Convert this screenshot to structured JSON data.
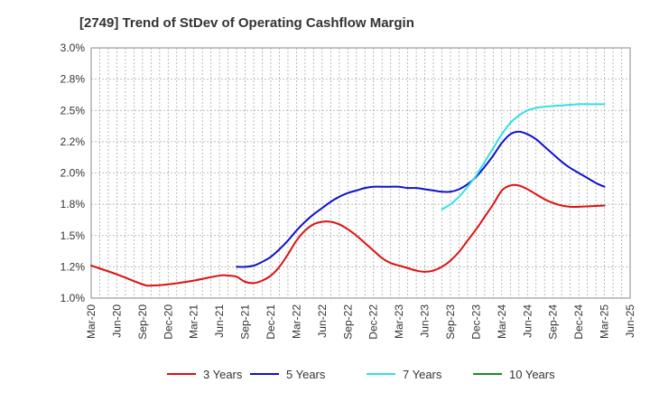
{
  "chart_data": {
    "type": "line",
    "title": "[2749]  Trend of StDev of Operating Cashflow Margin",
    "xlabel": "",
    "ylabel": "",
    "ylim": [
      1.0,
      3.0
    ],
    "y_ticks": [
      "1.0%",
      "1.2%",
      "1.5%",
      "1.8%",
      "2.0%",
      "2.2%",
      "2.5%",
      "2.8%",
      "3.0%"
    ],
    "x_ticks": [
      "Mar-20",
      "Jun-20",
      "Sep-20",
      "Dec-20",
      "Mar-21",
      "Jun-21",
      "Sep-21",
      "Dec-21",
      "Mar-22",
      "Jun-22",
      "Sep-22",
      "Dec-22",
      "Mar-23",
      "Jun-23",
      "Sep-23",
      "Dec-23",
      "Mar-24",
      "Jun-24",
      "Sep-24",
      "Dec-24",
      "Mar-25",
      "Jun-25"
    ],
    "grid": true,
    "legend_position": "bottom",
    "series": [
      {
        "name": "3 Years",
        "color": "#dd1111",
        "x": [
          "2020-03",
          "2020-06",
          "2020-09",
          "2020-10",
          "2020-12",
          "2021-03",
          "2021-06",
          "2021-07",
          "2021-08",
          "2021-09",
          "2021-10",
          "2021-11",
          "2021-12",
          "2022-01",
          "2022-02",
          "2022-03",
          "2022-04",
          "2022-05",
          "2022-06",
          "2022-07",
          "2022-08",
          "2022-09",
          "2022-10",
          "2022-11",
          "2022-12",
          "2023-01",
          "2023-02",
          "2023-03",
          "2023-04",
          "2023-05",
          "2023-06",
          "2023-07",
          "2023-08",
          "2023-09",
          "2023-10",
          "2023-11",
          "2023-12",
          "2024-01",
          "2024-02",
          "2024-03",
          "2024-04",
          "2024-05",
          "2024-06",
          "2024-07",
          "2024-08",
          "2024-09",
          "2024-10",
          "2024-11",
          "2024-12",
          "2025-03"
        ],
        "values": [
          1.26,
          1.19,
          1.11,
          1.1,
          1.11,
          1.14,
          1.18,
          1.18,
          1.17,
          1.13,
          1.12,
          1.14,
          1.18,
          1.25,
          1.35,
          1.46,
          1.54,
          1.59,
          1.61,
          1.61,
          1.59,
          1.55,
          1.5,
          1.44,
          1.38,
          1.32,
          1.28,
          1.26,
          1.24,
          1.22,
          1.21,
          1.22,
          1.25,
          1.3,
          1.37,
          1.46,
          1.55,
          1.65,
          1.75,
          1.86,
          1.9,
          1.9,
          1.87,
          1.83,
          1.79,
          1.76,
          1.74,
          1.73,
          1.73,
          1.74
        ]
      },
      {
        "name": "5 Years",
        "color": "#1111cc",
        "x": [
          "2021-08",
          "2021-09",
          "2021-10",
          "2021-11",
          "2021-12",
          "2022-01",
          "2022-02",
          "2022-03",
          "2022-04",
          "2022-05",
          "2022-06",
          "2022-07",
          "2022-08",
          "2022-09",
          "2022-10",
          "2022-11",
          "2022-12",
          "2023-01",
          "2023-02",
          "2023-03",
          "2023-04",
          "2023-05",
          "2023-06",
          "2023-07",
          "2023-08",
          "2023-09",
          "2023-10",
          "2023-11",
          "2023-12",
          "2024-01",
          "2024-02",
          "2024-03",
          "2024-04",
          "2024-05",
          "2024-06",
          "2024-07",
          "2024-08",
          "2024-09",
          "2024-10",
          "2024-11",
          "2024-12",
          "2025-01",
          "2025-02",
          "2025-03"
        ],
        "values": [
          1.25,
          1.25,
          1.26,
          1.29,
          1.33,
          1.39,
          1.46,
          1.54,
          1.61,
          1.67,
          1.72,
          1.77,
          1.81,
          1.84,
          1.86,
          1.88,
          1.89,
          1.89,
          1.89,
          1.89,
          1.88,
          1.88,
          1.87,
          1.86,
          1.85,
          1.85,
          1.87,
          1.91,
          1.97,
          2.05,
          2.14,
          2.24,
          2.31,
          2.33,
          2.31,
          2.27,
          2.21,
          2.15,
          2.09,
          2.04,
          2.0,
          1.96,
          1.92,
          1.89
        ]
      },
      {
        "name": "7 Years",
        "color": "#33e0e8",
        "x": [
          "2023-08",
          "2023-09",
          "2023-10",
          "2023-11",
          "2023-12",
          "2024-01",
          "2024-02",
          "2024-03",
          "2024-04",
          "2024-05",
          "2024-06",
          "2024-07",
          "2024-08",
          "2024-09",
          "2024-10",
          "2024-11",
          "2024-12",
          "2025-01",
          "2025-02",
          "2025-03"
        ],
        "values": [
          1.71,
          1.75,
          1.81,
          1.89,
          1.98,
          2.09,
          2.2,
          2.31,
          2.4,
          2.46,
          2.5,
          2.52,
          2.53,
          2.535,
          2.54,
          2.545,
          2.55,
          2.55,
          2.55,
          2.55
        ]
      },
      {
        "name": "10 Years",
        "color": "#228b22",
        "x": [],
        "values": []
      }
    ]
  }
}
